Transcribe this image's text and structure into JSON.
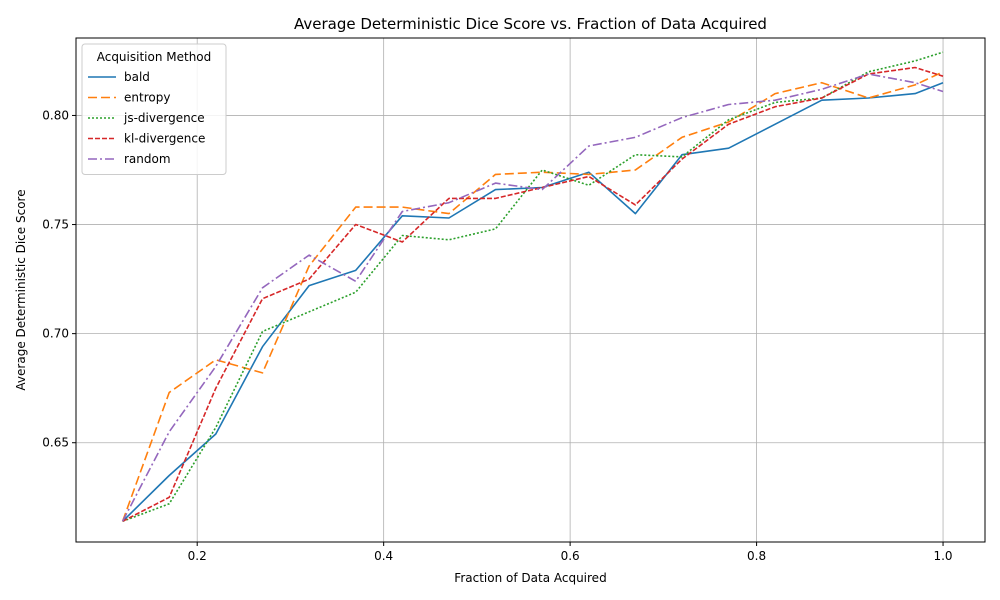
{
  "chart_data": {
    "type": "line",
    "title": "Average Deterministic Dice Score vs. Fraction of Data Acquired",
    "xlabel": "Fraction of Data Acquired",
    "ylabel": "Average Deterministic Dice Score",
    "xlim": [
      0.07,
      1.045
    ],
    "ylim": [
      0.6045,
      0.8355
    ],
    "xticks": [
      0.2,
      0.4,
      0.6,
      0.8,
      1.0
    ],
    "xtick_labels": [
      "0.2",
      "0.4",
      "0.6",
      "0.8",
      "1.0"
    ],
    "yticks": [
      0.65,
      0.7,
      0.75,
      0.8
    ],
    "ytick_labels": [
      "0.65",
      "0.70",
      "0.75",
      "0.80"
    ],
    "grid": true,
    "legend": {
      "title": "Acquisition Method",
      "placement": "top-left"
    },
    "x": [
      0.12,
      0.17,
      0.22,
      0.27,
      0.32,
      0.37,
      0.42,
      0.47,
      0.52,
      0.57,
      0.62,
      0.67,
      0.72,
      0.77,
      0.82,
      0.87,
      0.92,
      0.97,
      1.0
    ],
    "series": [
      {
        "name": "bald",
        "color": "#1f77b4",
        "dash": "",
        "values": [
          0.614,
          0.635,
          0.654,
          0.694,
          0.722,
          0.729,
          0.754,
          0.753,
          0.766,
          0.767,
          0.774,
          0.755,
          0.782,
          0.785,
          0.796,
          0.807,
          0.808,
          0.81,
          0.815
        ]
      },
      {
        "name": "entropy",
        "color": "#ff7f0e",
        "dash": "9,4",
        "values": [
          0.614,
          0.673,
          0.688,
          0.682,
          0.731,
          0.758,
          0.758,
          0.755,
          0.773,
          0.774,
          0.773,
          0.775,
          0.79,
          0.797,
          0.81,
          0.815,
          0.808,
          0.814,
          0.82
        ]
      },
      {
        "name": "js-divergence",
        "color": "#2ca02c",
        "dash": "2,2",
        "values": [
          0.614,
          0.622,
          0.657,
          0.701,
          0.71,
          0.719,
          0.745,
          0.743,
          0.748,
          0.775,
          0.768,
          0.782,
          0.781,
          0.798,
          0.806,
          0.808,
          0.82,
          0.825,
          0.829
        ]
      },
      {
        "name": "kl-divergence",
        "color": "#d62728",
        "dash": "5,2",
        "values": [
          0.614,
          0.625,
          0.675,
          0.716,
          0.725,
          0.75,
          0.742,
          0.762,
          0.762,
          0.767,
          0.772,
          0.759,
          0.78,
          0.796,
          0.804,
          0.808,
          0.819,
          0.822,
          0.818
        ]
      },
      {
        "name": "random",
        "color": "#9467bd",
        "dash": "9,3,2,3",
        "values": [
          0.614,
          0.655,
          0.685,
          0.721,
          0.736,
          0.724,
          0.756,
          0.76,
          0.769,
          0.766,
          0.786,
          0.79,
          0.799,
          0.805,
          0.807,
          0.812,
          0.819,
          0.815,
          0.811
        ]
      }
    ]
  }
}
